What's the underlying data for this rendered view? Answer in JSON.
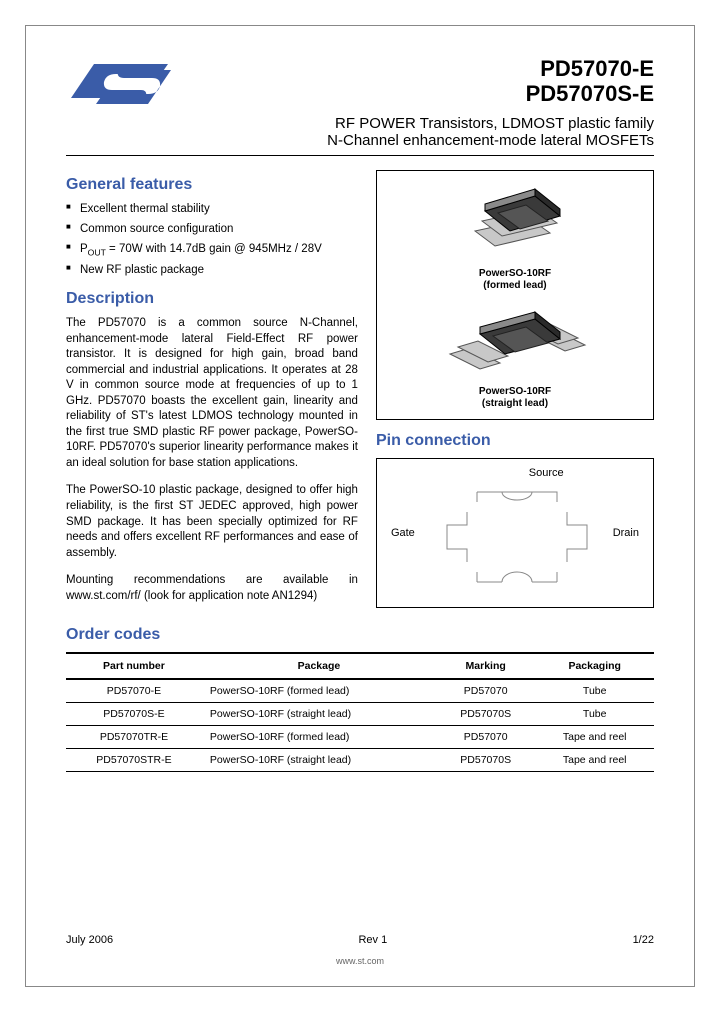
{
  "logo": {
    "brand_color": "#3a5ca8",
    "width": 110,
    "height": 55
  },
  "header": {
    "part1": "PD57070-E",
    "part2": "PD57070S-E",
    "subtitle1": "RF POWER Transistors, LDMOST plastic family",
    "subtitle2": "N-Channel enhancement-mode lateral MOSFETs"
  },
  "features": {
    "title": "General features",
    "items": [
      "Excellent thermal stability",
      "Common source configuration",
      "P<sub>OUT</sub> = 70W with 14.7dB gain @ 945MHz / 28V",
      "New RF plastic package"
    ]
  },
  "description": {
    "title": "Description",
    "para1": "The PD57070 is a common source N-Channel, enhancement-mode lateral Field-Effect RF power transistor. It is designed for high gain, broad band commercial and industrial applications. It operates at 28 V in common source mode at frequencies of up to 1 GHz. PD57070 boasts the excellent gain, linearity and reliability of ST's latest LDMOS technology mounted in the first true SMD plastic RF power package, PowerSO-10RF. PD57070's superior linearity performance makes it an ideal solution for base station applications.",
    "para2": "The PowerSO-10 plastic package, designed to offer high reliability, is the first ST JEDEC approved, high power SMD package. It has been specially optimized for RF needs and offers excellent RF performances and ease of assembly.",
    "para3": "Mounting recommendations are available in www.st.com/rf/ (look for application note AN1294)"
  },
  "packages": {
    "pkg1": {
      "name": "PowerSO-10RF",
      "lead": "(formed lead)"
    },
    "pkg2": {
      "name": "PowerSO-10RF",
      "lead": "(straight lead)"
    },
    "chip_body_color": "#3a3a3a",
    "chip_lead_color": "#c8c8c8",
    "chip_top_color": "#8a8a8a"
  },
  "pin": {
    "title": "Pin connection",
    "source": "Source",
    "gate": "Gate",
    "drain": "Drain",
    "line_color": "#888888"
  },
  "order": {
    "title": "Order codes",
    "columns": [
      "Part number",
      "Package",
      "Marking",
      "Packaging"
    ],
    "rows": [
      [
        "PD57070-E",
        "PowerSO-10RF (formed lead)",
        "PD57070",
        "Tube"
      ],
      [
        "PD57070S-E",
        "PowerSO-10RF (straight lead)",
        "PD57070S",
        "Tube"
      ],
      [
        "PD57070TR-E",
        "PowerSO-10RF (formed lead)",
        "PD57070",
        "Tape and reel"
      ],
      [
        "PD57070STR-E",
        "PowerSO-10RF (straight lead)",
        "PD57070S",
        "Tape and reel"
      ]
    ]
  },
  "footer": {
    "date": "July 2006",
    "rev": "Rev 1",
    "page": "1/22",
    "url": "www.st.com"
  }
}
